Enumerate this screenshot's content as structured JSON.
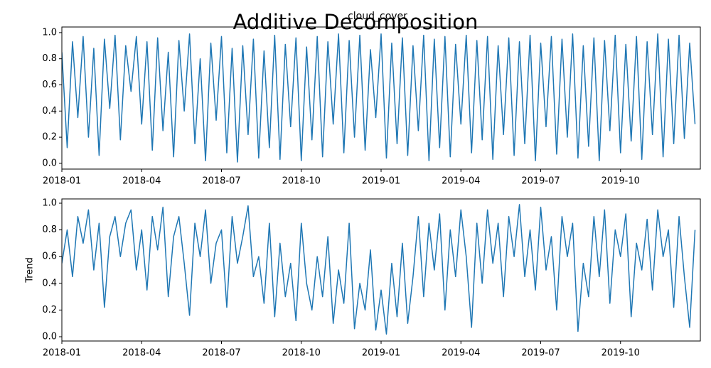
{
  "title": "Additive Decomposition",
  "chart_data": [
    {
      "type": "line",
      "title": "cloud_cover",
      "x": [
        0,
        0.2,
        0.4,
        0.6,
        0.8,
        1,
        1.2,
        1.4,
        1.6,
        1.8,
        2,
        2.2,
        2.4,
        2.6,
        2.8,
        3,
        3.2,
        3.4,
        3.6,
        3.8,
        4,
        4.2,
        4.4,
        4.6,
        4.8,
        5,
        5.2,
        5.4,
        5.6,
        5.8,
        6,
        6.2,
        6.4,
        6.6,
        6.8,
        7,
        7.2,
        7.4,
        7.6,
        7.8,
        8,
        8.2,
        8.4,
        8.6,
        8.8,
        9,
        9.2,
        9.4,
        9.6,
        9.8,
        10,
        10.2,
        10.4,
        10.6,
        10.8,
        11,
        11.2,
        11.4,
        11.6,
        11.8,
        12,
        12.2,
        12.4,
        12.6,
        12.8,
        13,
        13.2,
        13.4,
        13.6,
        13.8,
        14,
        14.2,
        14.4,
        14.6,
        14.8,
        15,
        15.2,
        15.4,
        15.6,
        15.8,
        16,
        16.2,
        16.4,
        16.6,
        16.8,
        17,
        17.2,
        17.4,
        17.6,
        17.8,
        18,
        18.2,
        18.4,
        18.6,
        18.8,
        19,
        19.2,
        19.4,
        19.6,
        19.8,
        20,
        20.2,
        20.4,
        20.6,
        20.8,
        21,
        21.2,
        21.4,
        21.6,
        21.8,
        22,
        22.2,
        22.4,
        22.6,
        22.8,
        23,
        23.2,
        23.4,
        23.6,
        23.8
      ],
      "series": [
        {
          "color": "#1f77b4",
          "values": [
            0.85,
            0.12,
            0.93,
            0.35,
            0.97,
            0.2,
            0.88,
            0.06,
            0.95,
            0.42,
            0.98,
            0.18,
            0.9,
            0.55,
            0.97,
            0.3,
            0.93,
            0.1,
            0.96,
            0.25,
            0.85,
            0.05,
            0.94,
            0.4,
            0.99,
            0.15,
            0.8,
            0.02,
            0.92,
            0.33,
            0.97,
            0.08,
            0.88,
            0.01,
            0.9,
            0.22,
            0.95,
            0.04,
            0.86,
            0.12,
            0.98,
            0.03,
            0.91,
            0.28,
            0.96,
            0.02,
            0.89,
            0.18,
            0.97,
            0.05,
            0.93,
            0.3,
            0.99,
            0.08,
            0.94,
            0.2,
            0.98,
            0.1,
            0.87,
            0.35,
            0.99,
            0.04,
            0.92,
            0.15,
            0.96,
            0.06,
            0.9,
            0.25,
            0.98,
            0.02,
            0.95,
            0.12,
            0.97,
            0.05,
            0.91,
            0.3,
            0.98,
            0.08,
            0.94,
            0.18,
            0.97,
            0.03,
            0.9,
            0.22,
            0.96,
            0.06,
            0.93,
            0.15,
            0.98,
            0.02,
            0.92,
            0.28,
            0.97,
            0.07,
            0.95,
            0.2,
            0.99,
            0.04,
            0.9,
            0.13,
            0.96,
            0.02,
            0.94,
            0.25,
            0.98,
            0.08,
            0.91,
            0.17,
            0.97,
            0.03,
            0.93,
            0.22,
            0.99,
            0.05,
            0.95,
            0.15,
            0.98,
            0.19,
            0.92,
            0.3
          ]
        }
      ],
      "xlim": [
        0,
        24
      ],
      "xticks": [
        {
          "value": 0,
          "label": "2018-01"
        },
        {
          "value": 3,
          "label": "2018-04"
        },
        {
          "value": 6,
          "label": "2018-07"
        },
        {
          "value": 9,
          "label": "2018-10"
        },
        {
          "value": 12,
          "label": "2019-01"
        },
        {
          "value": 15,
          "label": "2019-04"
        },
        {
          "value": 18,
          "label": "2019-07"
        },
        {
          "value": 21,
          "label": "2019-10"
        }
      ],
      "ylim": [
        -0.044,
        1.043
      ],
      "yticks": [
        {
          "value": 0,
          "label": "0.0"
        },
        0.2,
        0.4,
        0.6,
        0.8,
        {
          "value": 1,
          "label": "1.0"
        }
      ]
    },
    {
      "type": "line",
      "ylabel": "Trend",
      "x": [
        0,
        0.2,
        0.4,
        0.6,
        0.8,
        1,
        1.2,
        1.4,
        1.6,
        1.8,
        2,
        2.2,
        2.4,
        2.6,
        2.8,
        3,
        3.2,
        3.4,
        3.6,
        3.8,
        4,
        4.2,
        4.4,
        4.6,
        4.8,
        5,
        5.2,
        5.4,
        5.6,
        5.8,
        6,
        6.2,
        6.4,
        6.6,
        6.8,
        7,
        7.2,
        7.4,
        7.6,
        7.8,
        8,
        8.2,
        8.4,
        8.6,
        8.8,
        9,
        9.2,
        9.4,
        9.6,
        9.8,
        10,
        10.2,
        10.4,
        10.6,
        10.8,
        11,
        11.2,
        11.4,
        11.6,
        11.8,
        12,
        12.2,
        12.4,
        12.6,
        12.8,
        13,
        13.2,
        13.4,
        13.6,
        13.8,
        14,
        14.2,
        14.4,
        14.6,
        14.8,
        15,
        15.2,
        15.4,
        15.6,
        15.8,
        16,
        16.2,
        16.4,
        16.6,
        16.8,
        17,
        17.2,
        17.4,
        17.6,
        17.8,
        18,
        18.2,
        18.4,
        18.6,
        18.8,
        19,
        19.2,
        19.4,
        19.6,
        19.8,
        20,
        20.2,
        20.4,
        20.6,
        20.8,
        21,
        21.2,
        21.4,
        21.6,
        21.8,
        22,
        22.2,
        22.4,
        22.6,
        22.8,
        23,
        23.2,
        23.4,
        23.6,
        23.8
      ],
      "series": [
        {
          "color": "#1f77b4",
          "values": [
            0.55,
            0.8,
            0.45,
            0.9,
            0.7,
            0.95,
            0.5,
            0.85,
            0.22,
            0.75,
            0.9,
            0.6,
            0.85,
            0.95,
            0.5,
            0.8,
            0.35,
            0.9,
            0.65,
            0.97,
            0.3,
            0.75,
            0.9,
            0.55,
            0.16,
            0.85,
            0.6,
            0.95,
            0.4,
            0.7,
            0.8,
            0.22,
            0.9,
            0.55,
            0.75,
            0.98,
            0.45,
            0.6,
            0.25,
            0.85,
            0.15,
            0.7,
            0.3,
            0.55,
            0.12,
            0.85,
            0.4,
            0.2,
            0.6,
            0.3,
            0.75,
            0.1,
            0.5,
            0.25,
            0.85,
            0.06,
            0.4,
            0.2,
            0.65,
            0.05,
            0.35,
            0.02,
            0.55,
            0.15,
            0.7,
            0.1,
            0.45,
            0.9,
            0.3,
            0.85,
            0.5,
            0.92,
            0.2,
            0.8,
            0.45,
            0.95,
            0.6,
            0.07,
            0.85,
            0.4,
            0.95,
            0.55,
            0.85,
            0.3,
            0.9,
            0.6,
            0.99,
            0.45,
            0.8,
            0.35,
            0.97,
            0.5,
            0.75,
            0.2,
            0.9,
            0.6,
            0.85,
            0.04,
            0.55,
            0.3,
            0.9,
            0.45,
            0.95,
            0.25,
            0.8,
            0.6,
            0.92,
            0.15,
            0.7,
            0.5,
            0.88,
            0.35,
            0.95,
            0.6,
            0.8,
            0.22,
            0.9,
            0.45,
            0.07,
            0.8
          ]
        }
      ],
      "xlim": [
        0,
        24
      ],
      "xticks": [
        {
          "value": 0,
          "label": "2018-01"
        },
        {
          "value": 3,
          "label": "2018-04"
        },
        {
          "value": 6,
          "label": "2018-07"
        },
        {
          "value": 9,
          "label": "2018-10"
        },
        {
          "value": 12,
          "label": "2019-01"
        },
        {
          "value": 15,
          "label": "2019-04"
        },
        {
          "value": 18,
          "label": "2019-07"
        },
        {
          "value": 21,
          "label": "2019-10"
        }
      ],
      "ylim": [
        -0.032,
        1.032
      ],
      "yticks": [
        {
          "value": 0,
          "label": "0.0"
        },
        0.2,
        0.4,
        0.6,
        0.8,
        {
          "value": 1,
          "label": "1.0"
        }
      ]
    }
  ]
}
